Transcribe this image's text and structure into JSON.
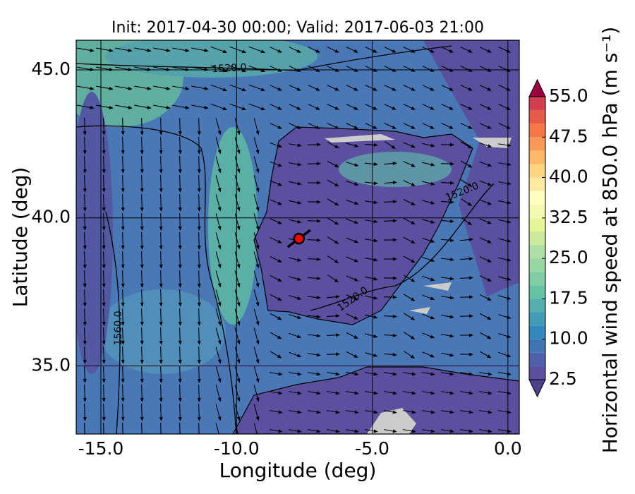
{
  "chart_data": {
    "type": "contour-map",
    "title": "Init: 2017-04-30 00:00; Valid: 2017-06-03 21:00",
    "x_label": "Longitude (deg)",
    "y_label": "Latitude (deg)",
    "xlim": [
      -15.91,
      0.42
    ],
    "ylim": [
      32.7,
      46.0
    ],
    "xticks": [
      {
        "value": -15,
        "label": "-15.0"
      },
      {
        "value": -10,
        "label": "-10.0"
      },
      {
        "value": -5,
        "label": "-5.0"
      },
      {
        "value": 0,
        "label": "0.0"
      }
    ],
    "yticks": [
      {
        "value": 35,
        "label": "35.0"
      },
      {
        "value": 40,
        "label": "40.0"
      },
      {
        "value": 45,
        "label": "45.0"
      }
    ],
    "colorbar": {
      "label": "Horizontal wind speed at 850.0 hPa (m s⁻¹)",
      "lim": [
        2.5,
        55
      ],
      "ticks": [
        2.5,
        {
          "value": 10,
          "label": "10.0"
        },
        {
          "value": 17.5,
          "label": "17.5"
        },
        {
          "value": 25,
          "label": "25.0"
        },
        {
          "value": 32.5,
          "label": "32.5"
        },
        {
          "value": 40,
          "label": "40.0"
        },
        {
          "value": 47.5,
          "label": "47.5"
        },
        {
          "value": 55,
          "label": "55.0"
        }
      ],
      "levels": [
        2.5,
        5,
        7.5,
        10,
        12.5,
        15,
        17.5,
        20,
        22.5,
        25,
        27.5,
        30,
        32.5,
        35,
        37.5,
        40,
        42.5,
        45,
        47.5,
        50,
        52.5,
        55
      ],
      "colors": [
        "#5e4fa2",
        "#4f61aa",
        "#4075b4",
        "#3288bd",
        "#439bb5",
        "#55aeac",
        "#66c2a5",
        "#80cca5",
        "#98d6a4",
        "#b0dfa3",
        "#cbe99d",
        "#e6f598",
        "#f3fab0",
        "#fefebe",
        "#fee9a0",
        "#fed583",
        "#fdb66a",
        "#fa9857",
        "#f57748",
        "#e75948",
        "#d53e4f"
      ]
    },
    "contour_labels": [
      "1520.0",
      "1520.0",
      "1520.0",
      "1560.0"
    ],
    "marker": {
      "x": -7.7,
      "y": 39.3,
      "color": "#ff0000"
    }
  }
}
